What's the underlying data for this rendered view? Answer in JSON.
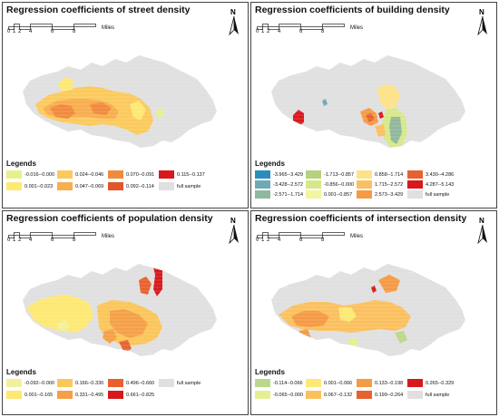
{
  "scale": {
    "ticks": [
      "0",
      "1",
      "2",
      "4",
      "6",
      "8"
    ],
    "unit": "Miles"
  },
  "north_label": "N",
  "legend_title": "Legends",
  "base_color": "#e0e0e0",
  "panels": [
    {
      "title": "Regression coefficients of street density",
      "legend": [
        {
          "label": "-0.016--0.000",
          "color": "#e8f08c"
        },
        {
          "label": "0.001--0.023",
          "color": "#fde973"
        },
        {
          "label": "0.024--0.046",
          "color": "#fcc95c"
        },
        {
          "label": "0.047--0.069",
          "color": "#f8ad4e"
        },
        {
          "label": "0.070--0.091",
          "color": "#f18a3d"
        },
        {
          "label": "0.092--0.114",
          "color": "#e0552b"
        },
        {
          "label": "0.115--0.137",
          "color": "#d7191c"
        },
        {
          "label": "full sample",
          "color": "#e0e0e0"
        }
      ]
    },
    {
      "title": "Regression coefficients of building density",
      "legend": [
        {
          "label": "-3.965--3.429",
          "color": "#2b8cbe"
        },
        {
          "label": "-3.428--2.572",
          "color": "#6fa8b6"
        },
        {
          "label": "-2.571--1.714",
          "color": "#90b89c"
        },
        {
          "label": "-1.713--0.857",
          "color": "#b4d27f"
        },
        {
          "label": "-0.856--0.000",
          "color": "#d6e88a"
        },
        {
          "label": "0.001--0.857",
          "color": "#f3f5a0"
        },
        {
          "label": "0.858--1.714",
          "color": "#fde28a"
        },
        {
          "label": "1.715--2.572",
          "color": "#fbbf63"
        },
        {
          "label": "2.573--3.429",
          "color": "#f59a45"
        },
        {
          "label": "3.430--4.286",
          "color": "#e8612e"
        },
        {
          "label": "4.287--5.143",
          "color": "#d7191c"
        },
        {
          "label": "full sample",
          "color": "#e0e0e0"
        }
      ]
    },
    {
      "title": "Regression coefficients of population density",
      "legend": [
        {
          "label": "-0.092--0.000",
          "color": "#f2f09a"
        },
        {
          "label": "0.001--0.165",
          "color": "#fde973"
        },
        {
          "label": "0.166--0.330",
          "color": "#fbc65a"
        },
        {
          "label": "0.331--0.495",
          "color": "#f5a047"
        },
        {
          "label": "0.496--0.660",
          "color": "#e8612e"
        },
        {
          "label": "0.661--0.825",
          "color": "#d7191c"
        },
        {
          "label": "full sample",
          "color": "#e0e0e0"
        }
      ]
    },
    {
      "title": "Regression coefficients of intersection density",
      "legend": [
        {
          "label": "-0.114--0.066",
          "color": "#b8d98a"
        },
        {
          "label": "-0.065--0.000",
          "color": "#e4ef93"
        },
        {
          "label": "0.001--0.066",
          "color": "#fde973"
        },
        {
          "label": "0.067--0.132",
          "color": "#fbc05e"
        },
        {
          "label": "0.133--0.198",
          "color": "#f59a45"
        },
        {
          "label": "0.199--0.264",
          "color": "#e8612e"
        },
        {
          "label": "0.265--0.329",
          "color": "#d7191c"
        },
        {
          "label": "full sample",
          "color": "#e0e0e0"
        }
      ]
    }
  ]
}
